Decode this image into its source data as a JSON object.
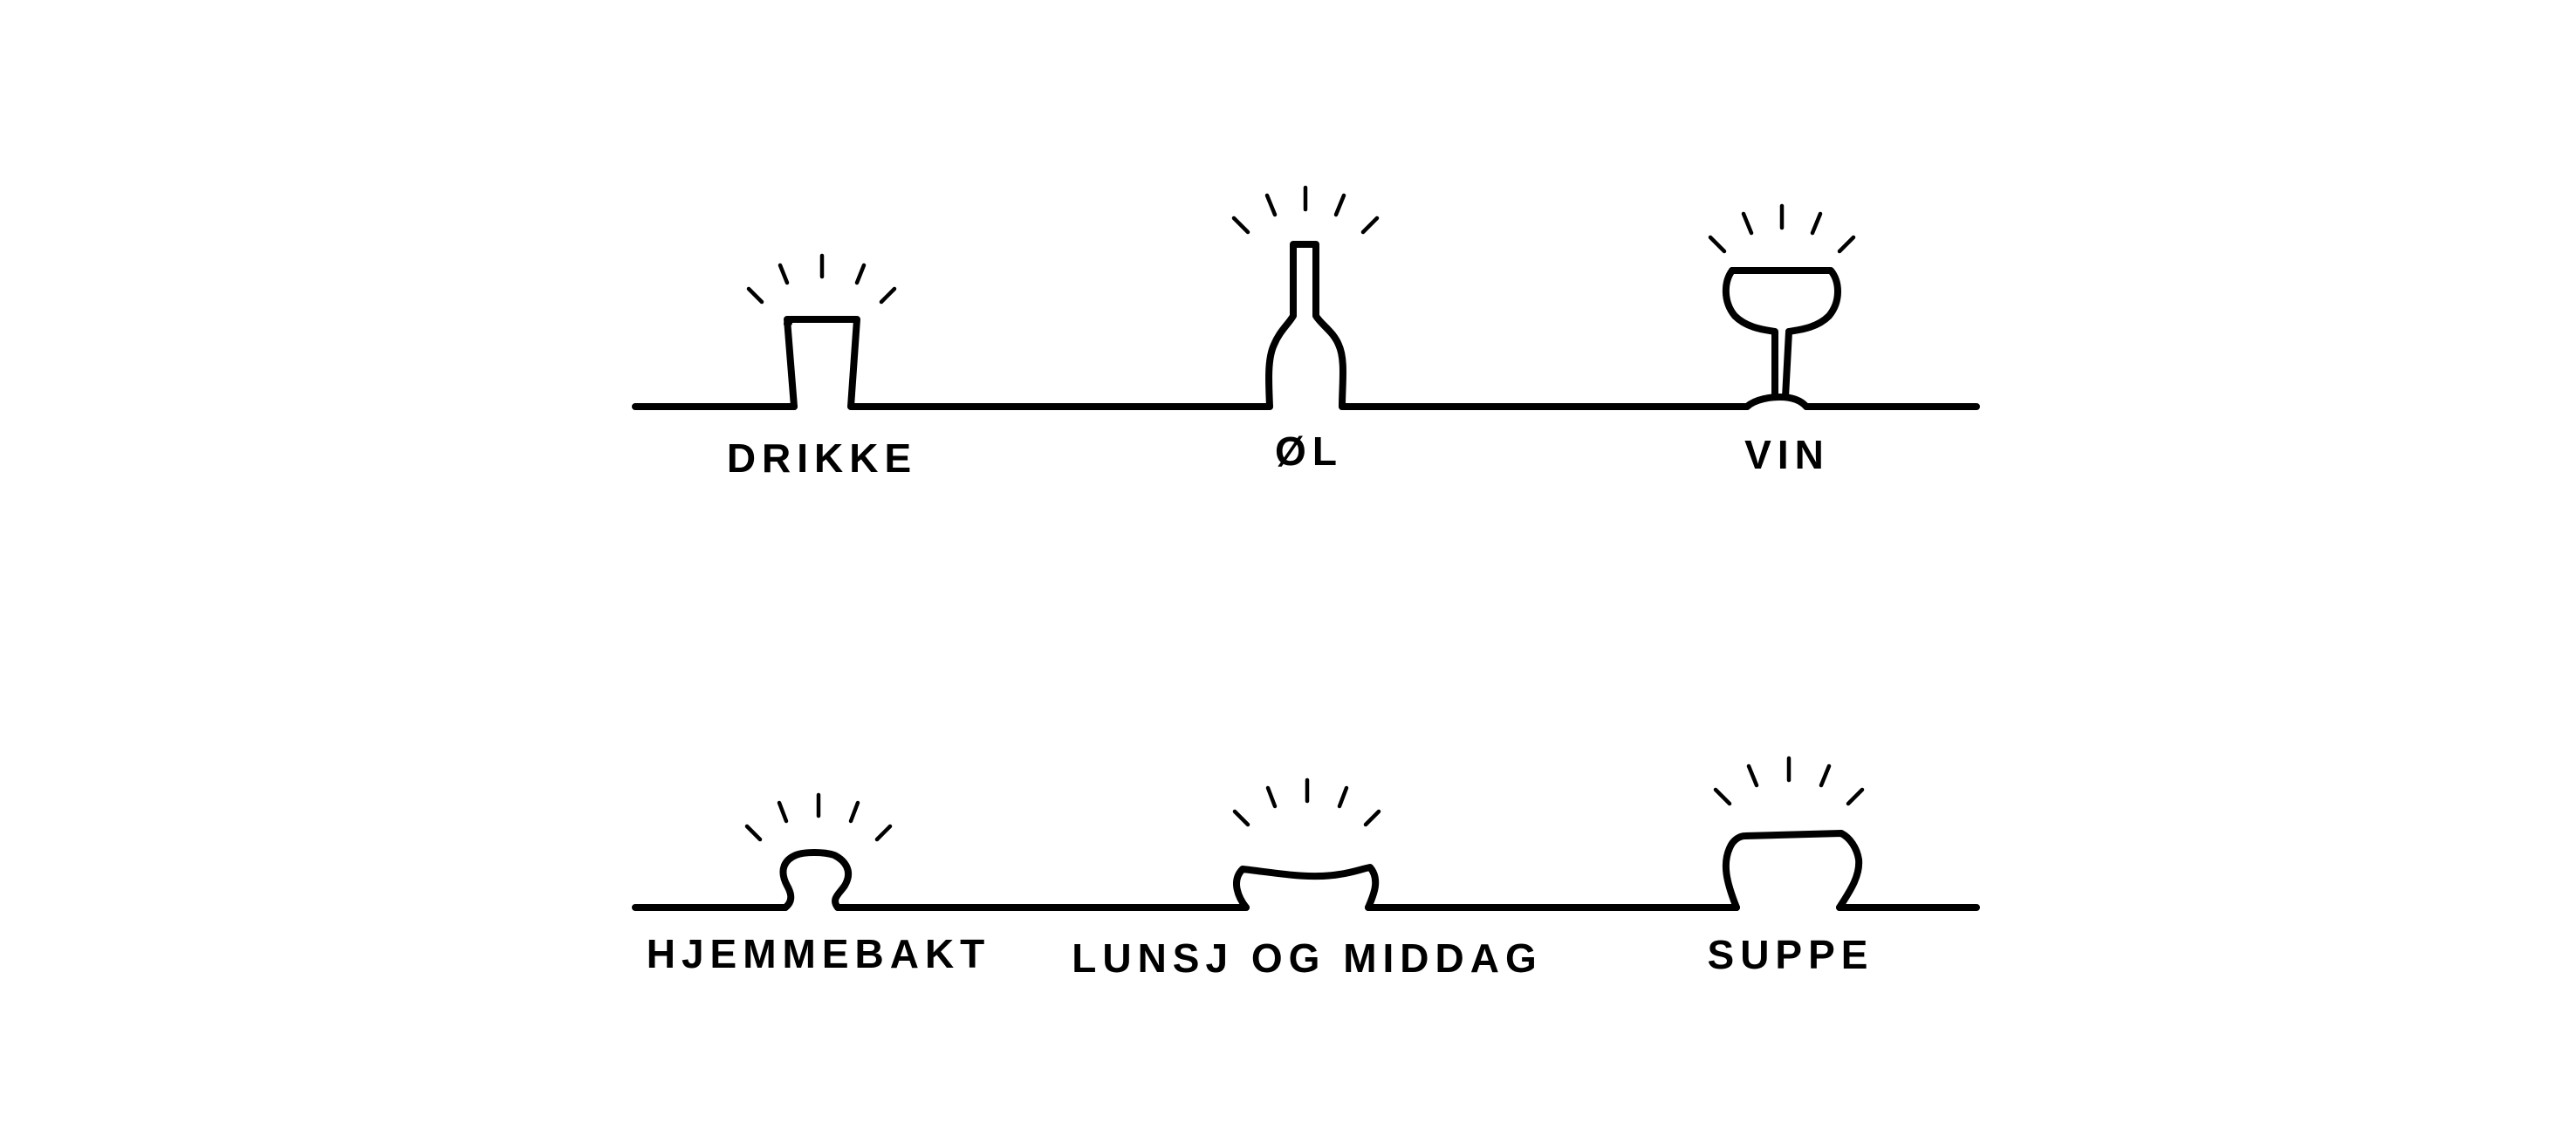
{
  "colors": {
    "ink": "#000000",
    "background": "#ffffff"
  },
  "menu": {
    "rows": [
      {
        "items": [
          {
            "label": "DRIKKE",
            "icon": "glass-icon"
          },
          {
            "label": "ØL",
            "icon": "beer-bottle-icon"
          },
          {
            "label": "VIN",
            "icon": "wine-glass-icon"
          }
        ]
      },
      {
        "items": [
          {
            "label": "HJEMMEBAKT",
            "icon": "bun-icon"
          },
          {
            "label": "LUNSJ OG MIDDAG",
            "icon": "plate-icon"
          },
          {
            "label": "SUPPE",
            "icon": "soup-bowl-icon"
          }
        ]
      }
    ]
  }
}
